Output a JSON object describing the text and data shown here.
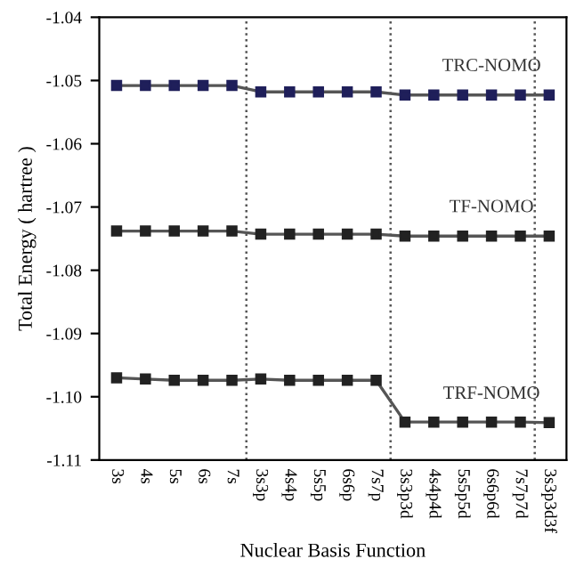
{
  "chart_data": {
    "type": "line",
    "xlabel": "Nuclear Basis Function",
    "ylabel": "Total Energy ( hartree )",
    "categories": [
      "3s",
      "4s",
      "5s",
      "6s",
      "7s",
      "3s3p",
      "4s4p",
      "5s5p",
      "6s6p",
      "7s7p",
      "3s3p3d",
      "4s4p4d",
      "5s5p5d",
      "6s6p6d",
      "7s7p7d",
      "3s3p3d3f"
    ],
    "series": [
      {
        "name": "TRC-NOMO",
        "color": "#1f1f5a",
        "values": [
          -1.0508,
          -1.0508,
          -1.0508,
          -1.0508,
          -1.0508,
          -1.0518,
          -1.0518,
          -1.0518,
          -1.0518,
          -1.0518,
          -1.0523,
          -1.0523,
          -1.0523,
          -1.0523,
          -1.0523,
          -1.0523
        ]
      },
      {
        "name": "TF-NOMO",
        "color": "#222222",
        "values": [
          -1.0738,
          -1.0738,
          -1.0738,
          -1.0738,
          -1.0738,
          -1.0743,
          -1.0743,
          -1.0743,
          -1.0743,
          -1.0743,
          -1.0746,
          -1.0746,
          -1.0746,
          -1.0746,
          -1.0746,
          -1.0746
        ]
      },
      {
        "name": "TRF-NOMO",
        "color": "#222222",
        "values": [
          -1.097,
          -1.0972,
          -1.0974,
          -1.0974,
          -1.0974,
          -1.0972,
          -1.0974,
          -1.0974,
          -1.0974,
          -1.0974,
          -1.104,
          -1.104,
          -1.104,
          -1.104,
          -1.104,
          -1.1041
        ]
      }
    ],
    "ylim": [
      -1.11,
      -1.04
    ],
    "yticks": [
      -1.11,
      {
        "value": -1.1,
        "label": "-1.10"
      },
      -1.09,
      -1.08,
      -1.07,
      -1.06,
      -1.05,
      -1.04
    ],
    "marker": "square",
    "line_style": "solid",
    "grid": false,
    "legend": false
  }
}
